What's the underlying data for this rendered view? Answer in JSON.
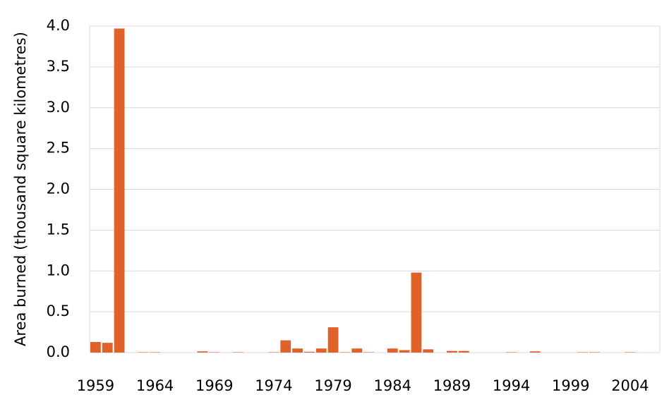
{
  "chart_data": {
    "type": "bar",
    "y_label": "Area burned (thousand square kilometres)",
    "categories": [
      "1959",
      null,
      null,
      null,
      null,
      "1964",
      null,
      null,
      null,
      null,
      "1969",
      null,
      null,
      null,
      null,
      "1974",
      null,
      null,
      null,
      null,
      "1979",
      null,
      null,
      null,
      null,
      "1984",
      null,
      null,
      null,
      null,
      "1989",
      null,
      null,
      null,
      null,
      "1994",
      null,
      null,
      null,
      null,
      "1999",
      null,
      null,
      null,
      null,
      "2004",
      null,
      null
    ],
    "values": [
      0.13,
      0.12,
      3.97,
      0,
      0.005,
      0.005,
      0,
      0,
      0,
      0.015,
      0.005,
      0,
      0.005,
      0,
      0,
      0.005,
      0.15,
      0.05,
      0.01,
      0.05,
      0.31,
      0.005,
      0.05,
      0.005,
      0,
      0.05,
      0.03,
      0.98,
      0.04,
      0,
      0.02,
      0.02,
      0,
      0,
      0,
      0.005,
      0,
      0.015,
      0,
      0,
      0,
      0.005,
      0.005,
      0,
      0,
      0.005,
      0,
      0
    ],
    "color": "#e0622b",
    "ylim": [
      0,
      4.0
    ],
    "yticks": [
      {
        "value": 0,
        "label": "0.0"
      },
      0.5,
      {
        "value": 1,
        "label": "1.0"
      },
      1.5,
      {
        "value": 2,
        "label": "2.0"
      },
      2.5,
      {
        "value": 3,
        "label": "3.0"
      },
      3.5,
      {
        "value": 4,
        "label": "4.0"
      }
    ],
    "grid": true
  }
}
